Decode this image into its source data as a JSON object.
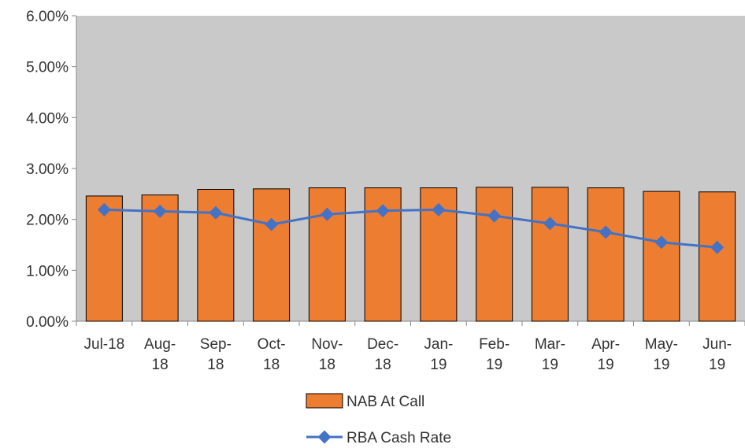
{
  "chart_data": {
    "type": "bar",
    "categories": [
      [
        "Jul-18"
      ],
      [
        "Aug-",
        "18"
      ],
      [
        "Sep-",
        "18"
      ],
      [
        "Oct-",
        "18"
      ],
      [
        "Nov-",
        "18"
      ],
      [
        "Dec-",
        "18"
      ],
      [
        "Jan-",
        "19"
      ],
      [
        "Feb-",
        "19"
      ],
      [
        "Mar-",
        "19"
      ],
      [
        "Apr-",
        "19"
      ],
      [
        "May-",
        "19"
      ],
      [
        "Jun-",
        "19"
      ]
    ],
    "series": [
      {
        "name": "NAB At Call",
        "type": "bar",
        "color": "#ED7D31",
        "values": [
          2.46,
          2.48,
          2.59,
          2.6,
          2.62,
          2.62,
          2.62,
          2.63,
          2.63,
          2.62,
          2.55,
          2.54
        ]
      },
      {
        "name": "RBA Cash Rate",
        "type": "line",
        "color": "#4472C4",
        "values": [
          2.19,
          2.16,
          2.13,
          1.9,
          2.1,
          2.17,
          2.19,
          2.07,
          1.92,
          1.75,
          1.55,
          1.45
        ]
      }
    ],
    "ylim": [
      0,
      6
    ],
    "yticks": [
      "0.00%",
      "1.00%",
      "2.00%",
      "3.00%",
      "4.00%",
      "5.00%",
      "6.00%"
    ],
    "legend_position": "bottom",
    "plot_background": "#C8C8C8"
  }
}
